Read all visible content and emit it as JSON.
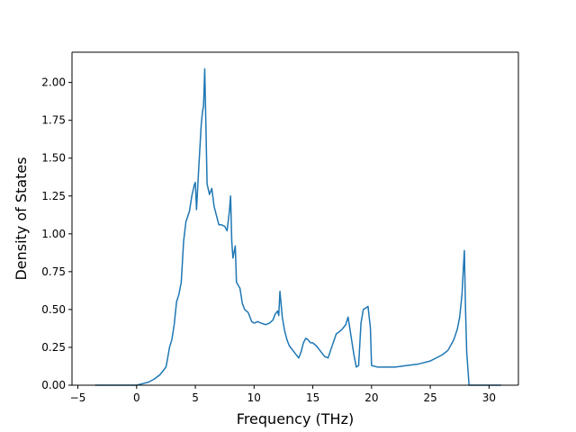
{
  "chart_data": {
    "type": "line",
    "title": "",
    "xlabel": "Frequency (THz)",
    "ylabel": "Density of States",
    "xlim": [
      -5.5,
      32.5
    ],
    "ylim": [
      0,
      2.2
    ],
    "xticks": [
      -5,
      0,
      5,
      10,
      15,
      20,
      25,
      30
    ],
    "xtick_labels": [
      "−5",
      "0",
      "5",
      "10",
      "15",
      "20",
      "25",
      "30"
    ],
    "yticks": [
      0,
      0.25,
      0.5,
      0.75,
      1.0,
      1.25,
      1.5,
      1.75,
      2.0
    ],
    "ytick_labels": [
      "0.00",
      "0.25",
      "0.50",
      "0.75",
      "1.00",
      "1.25",
      "1.50",
      "1.75",
      "2.00"
    ],
    "grid": false,
    "legend": "none",
    "series": [
      {
        "color": "#1f77b4",
        "x": [
          -3.5,
          -2,
          -1,
          0,
          0.5,
          1,
          1.5,
          2,
          2.5,
          2.6,
          2.8,
          3.0,
          3.2,
          3.4,
          3.6,
          3.8,
          4.0,
          4.2,
          4.5,
          4.7,
          4.9,
          5.0,
          5.1,
          5.3,
          5.5,
          5.6,
          5.7,
          5.8,
          6.0,
          6.2,
          6.4,
          6.6,
          6.8,
          7.0,
          7.2,
          7.5,
          7.7,
          7.9,
          8.0,
          8.1,
          8.2,
          8.4,
          8.5,
          8.8,
          9.0,
          9.2,
          9.5,
          9.8,
          10.0,
          10.3,
          10.6,
          11.0,
          11.3,
          11.6,
          11.8,
          12.0,
          12.1,
          12.2,
          12.4,
          12.6,
          12.8,
          13.0,
          13.2,
          13.5,
          13.8,
          14.0,
          14.2,
          14.4,
          14.6,
          14.8,
          15.0,
          15.3,
          15.6,
          16.0,
          16.3,
          16.6,
          17.0,
          17.2,
          17.5,
          17.8,
          18.0,
          18.2,
          18.5,
          18.7,
          18.9,
          19.1,
          19.3,
          19.5,
          19.7,
          19.9,
          20.0,
          20.5,
          21.0,
          22.0,
          23.0,
          24.0,
          25.0,
          25.5,
          26.0,
          26.5,
          27.0,
          27.3,
          27.5,
          27.7,
          27.8,
          27.9,
          28.0,
          28.1,
          28.3,
          29.0,
          31.0
        ],
        "y": [
          0,
          0,
          0,
          0,
          0.01,
          0.02,
          0.04,
          0.07,
          0.12,
          0.16,
          0.25,
          0.3,
          0.4,
          0.55,
          0.6,
          0.68,
          0.95,
          1.08,
          1.15,
          1.25,
          1.32,
          1.34,
          1.16,
          1.45,
          1.72,
          1.8,
          1.85,
          2.09,
          1.33,
          1.26,
          1.3,
          1.18,
          1.12,
          1.06,
          1.06,
          1.05,
          1.02,
          1.15,
          1.25,
          0.95,
          0.84,
          0.92,
          0.68,
          0.64,
          0.54,
          0.5,
          0.48,
          0.42,
          0.41,
          0.42,
          0.41,
          0.4,
          0.41,
          0.43,
          0.47,
          0.49,
          0.46,
          0.62,
          0.45,
          0.36,
          0.3,
          0.26,
          0.24,
          0.21,
          0.18,
          0.22,
          0.28,
          0.31,
          0.3,
          0.28,
          0.28,
          0.26,
          0.23,
          0.19,
          0.18,
          0.25,
          0.34,
          0.35,
          0.37,
          0.4,
          0.45,
          0.35,
          0.2,
          0.12,
          0.13,
          0.41,
          0.5,
          0.51,
          0.52,
          0.38,
          0.13,
          0.12,
          0.12,
          0.12,
          0.13,
          0.14,
          0.16,
          0.18,
          0.2,
          0.23,
          0.3,
          0.37,
          0.45,
          0.6,
          0.75,
          0.89,
          0.5,
          0.22,
          0,
          0,
          0
        ]
      }
    ]
  }
}
